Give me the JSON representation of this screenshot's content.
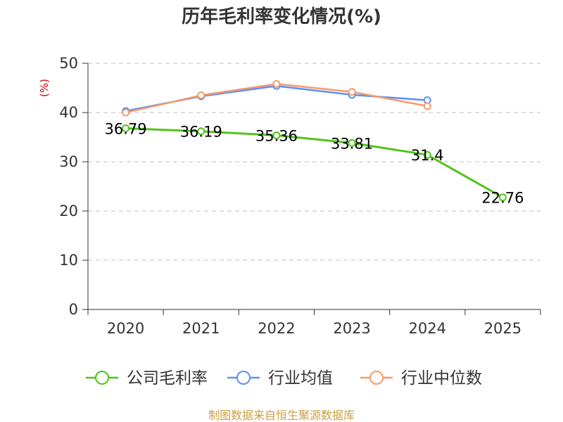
{
  "chart_data": {
    "type": "line",
    "title": "历年毛利率变化情况(%)",
    "xlabel": "",
    "ylabel": "(%)",
    "categories": [
      "2020",
      "2021",
      "2022",
      "2023",
      "2024",
      "2025"
    ],
    "ylim": [
      0,
      50
    ],
    "yticks": [
      0,
      10,
      20,
      30,
      40,
      50
    ],
    "grid": true,
    "legend_position": "bottom",
    "series": [
      {
        "name": "公司毛利率",
        "color": "#52c41a",
        "values": [
          36.79,
          36.19,
          35.36,
          33.81,
          31.4,
          22.76
        ],
        "labels": [
          "36.79",
          "36.19",
          "35.36",
          "33.81",
          "31.4",
          "22.76"
        ]
      },
      {
        "name": "行业均值",
        "color": "#5b8ff9",
        "values": [
          40.3,
          43.3,
          45.4,
          43.6,
          42.5,
          null
        ]
      },
      {
        "name": "行业中位数",
        "color": "#f59a6a",
        "values": [
          40.0,
          43.5,
          45.8,
          44.2,
          41.3,
          null
        ]
      }
    ]
  },
  "source": "制图数据来自恒生聚源数据库"
}
